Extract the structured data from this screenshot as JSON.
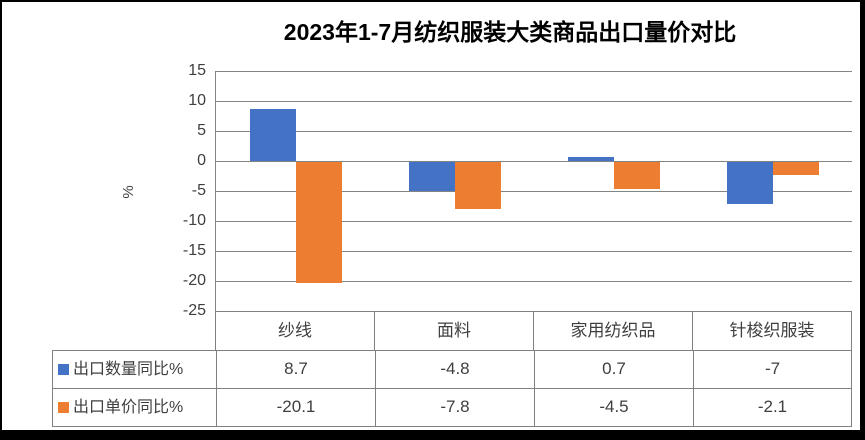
{
  "chart_data": {
    "type": "bar",
    "title": "2023年1-7月纺织服装大类商品出口量价对比",
    "ylabel": "%",
    "categories": [
      "纱线",
      "面料",
      "家用纺织品",
      "针梭织服装"
    ],
    "series": [
      {
        "name": "出口数量同比%",
        "color": "#4472C4",
        "values": [
          8.7,
          -4.8,
          0.7,
          -7
        ]
      },
      {
        "name": "出口单价同比%",
        "color": "#ED7D31",
        "values": [
          -20.1,
          -7.8,
          -4.5,
          -2.1
        ]
      }
    ],
    "ylim": [
      -25,
      15
    ],
    "ytick_step": 5,
    "yticks": [
      15,
      10,
      5,
      0,
      -5,
      -10,
      -15,
      -20,
      -25
    ],
    "grid": true,
    "gridline_color": "#848484",
    "axis_color": "#848484",
    "legend_position": "table-left",
    "frame_border_color": "#000000"
  }
}
